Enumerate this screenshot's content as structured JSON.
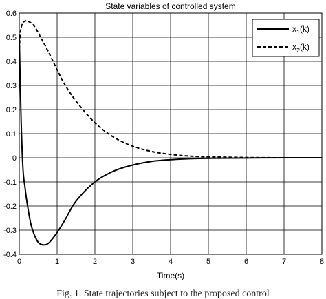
{
  "caption": "Fig. 1.   State trajectories subject to the proposed control",
  "chart_data": {
    "type": "line",
    "title": "State variables of controlled system",
    "xlabel": "Time(s)",
    "ylabel": "",
    "xlim": [
      0,
      8
    ],
    "ylim": [
      -0.4,
      0.6
    ],
    "xticks": [
      0,
      1,
      2,
      3,
      4,
      5,
      6,
      7,
      8
    ],
    "yticks": [
      -0.4,
      -0.3,
      -0.2,
      -0.1,
      0,
      0.1,
      0.2,
      0.3,
      0.4,
      0.5,
      0.6
    ],
    "xtick_labels": [
      "0",
      "1",
      "2",
      "3",
      "4",
      "5",
      "6",
      "7",
      "8"
    ],
    "ytick_labels": [
      "-0.4",
      "-0.3",
      "-0.2",
      "-0.1",
      "0",
      "0.1",
      "0.2",
      "0.3",
      "0.4",
      "0.5",
      "0.6"
    ],
    "grid": true,
    "legend_position": "top-right",
    "series": [
      {
        "name": "x1(k)",
        "legend_main": "x",
        "legend_sub": "1",
        "legend_tail": "(k)",
        "style": "solid",
        "color": "#000000",
        "x": [
          0,
          0.05,
          0.1,
          0.15,
          0.2,
          0.3,
          0.4,
          0.5,
          0.6,
          0.7,
          0.8,
          1.0,
          1.2,
          1.5,
          2.0,
          2.5,
          3.0,
          3.5,
          4.0,
          4.5,
          5.0,
          6.0,
          7.0,
          8.0
        ],
        "y": [
          0.5,
          0.15,
          -0.05,
          -0.12,
          -0.18,
          -0.27,
          -0.32,
          -0.35,
          -0.36,
          -0.36,
          -0.35,
          -0.31,
          -0.26,
          -0.18,
          -0.1,
          -0.055,
          -0.03,
          -0.015,
          -0.008,
          -0.004,
          -0.002,
          -0.001,
          0,
          0
        ]
      },
      {
        "name": "x2(k)",
        "legend_main": "x",
        "legend_sub": "2",
        "legend_tail": "(k)",
        "style": "dashed",
        "color": "#000000",
        "x": [
          0,
          0.03,
          0.08,
          0.15,
          0.25,
          0.4,
          0.6,
          0.8,
          1.0,
          1.2,
          1.5,
          2.0,
          2.5,
          3.0,
          3.5,
          4.0,
          4.5,
          5.0,
          6.0,
          7.0,
          8.0
        ],
        "y": [
          0.45,
          0.52,
          0.555,
          0.567,
          0.565,
          0.545,
          0.49,
          0.43,
          0.365,
          0.305,
          0.235,
          0.145,
          0.085,
          0.048,
          0.026,
          0.014,
          0.007,
          0.004,
          0.001,
          0,
          0
        ]
      }
    ]
  }
}
